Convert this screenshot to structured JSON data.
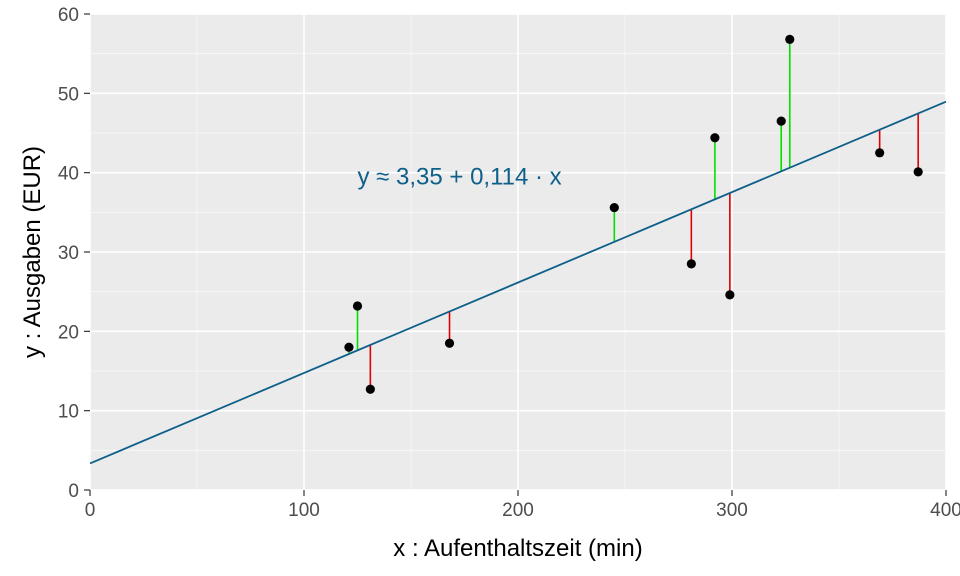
{
  "chart_data": {
    "type": "scatter",
    "xlabel": "x : Aufenthaltszeit (min)",
    "ylabel": "y : Ausgaben (EUR)",
    "xlim": [
      0,
      400
    ],
    "ylim": [
      0,
      60
    ],
    "x_ticks": [
      0,
      100,
      200,
      300,
      400
    ],
    "y_ticks": [
      0,
      10,
      20,
      30,
      40,
      50,
      60
    ],
    "x_tick_labels": [
      "0",
      "100",
      "200",
      "300",
      "400"
    ],
    "y_tick_labels": [
      "0",
      "10",
      "20",
      "30",
      "40",
      "50",
      "60"
    ],
    "grid": true,
    "regression": {
      "intercept": 3.35,
      "slope": 0.114
    },
    "annotation": {
      "text": "y ≈ 3,35 + 0,114 · x",
      "x": 125,
      "y": 39.5
    },
    "points": [
      {
        "x": 121,
        "y": 18.0
      },
      {
        "x": 125,
        "y": 23.2
      },
      {
        "x": 131,
        "y": 12.7
      },
      {
        "x": 168,
        "y": 18.5
      },
      {
        "x": 245,
        "y": 35.6
      },
      {
        "x": 281,
        "y": 28.5
      },
      {
        "x": 292,
        "y": 44.4
      },
      {
        "x": 299,
        "y": 24.6
      },
      {
        "x": 323,
        "y": 46.5
      },
      {
        "x": 327,
        "y": 56.8
      },
      {
        "x": 369,
        "y": 42.5
      },
      {
        "x": 387,
        "y": 40.1
      }
    ],
    "colors": {
      "panel": "#ebebeb",
      "grid_major": "#ffffff",
      "line": "#0e5f8a",
      "positive_residual": "#00e000",
      "negative_residual": "#e00000",
      "point": "#000000",
      "tick_text": "#4d4d4d",
      "annotation_text": "#0e5f8a"
    }
  }
}
